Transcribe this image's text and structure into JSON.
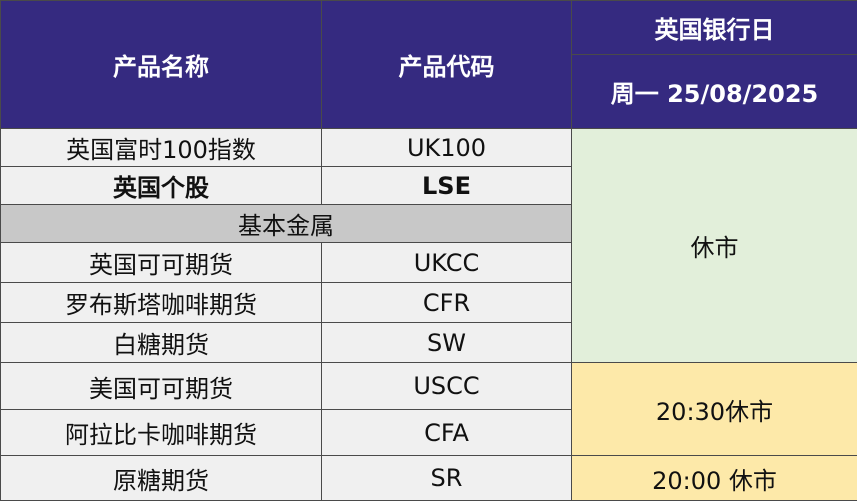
{
  "header": {
    "product_name": "产品名称",
    "product_code": "产品代码",
    "holiday_title": "英国银行日",
    "holiday_date": "周一 25/08/2025"
  },
  "rows": [
    {
      "name": "英国富时100指数",
      "code": "UK100"
    },
    {
      "name": "英国个股",
      "code": "LSE"
    },
    {
      "section": "基本金属"
    },
    {
      "name": "英国可可期货",
      "code": "UKCC"
    },
    {
      "name": "罗布斯塔咖啡期货",
      "code": "CFR"
    },
    {
      "name": "白糖期货",
      "code": "SW"
    },
    {
      "name": "美国可可期货",
      "code": "USCC"
    },
    {
      "name": "阿拉比卡咖啡期货",
      "code": "CFA"
    },
    {
      "name": "原糖期货",
      "code": "SR"
    }
  ],
  "status": {
    "group1": "休市",
    "group2": "20:30休市",
    "group3": "20:00 休市"
  },
  "colors": {
    "header_bg": "#352A80",
    "row_bg": "#f0f0f0",
    "section_bg": "#c8c8c8",
    "closed_green": "#e2efda",
    "closed_yellow": "#fde9a9"
  }
}
